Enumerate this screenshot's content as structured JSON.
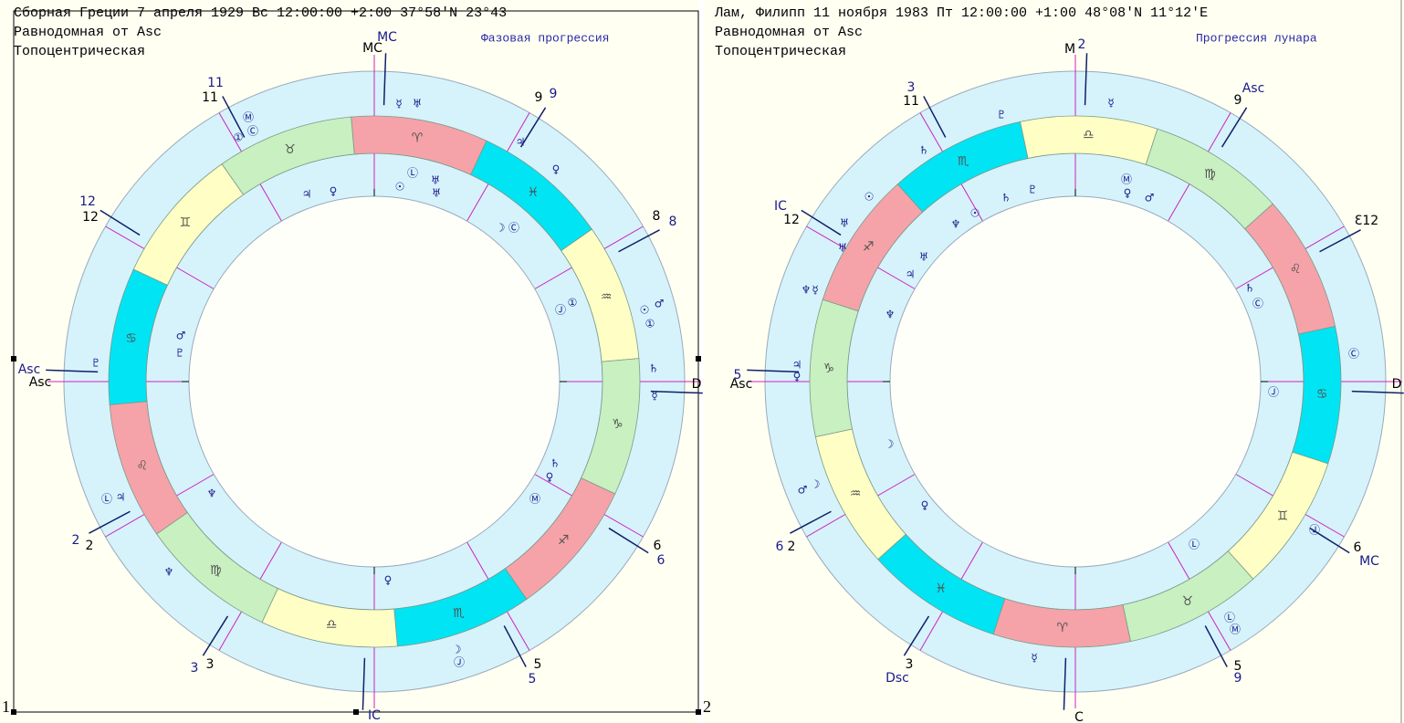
{
  "panels": [
    {
      "number": "1",
      "header": {
        "title": "Сборная Греции   7 апреля 1929  Вс  12:00:00 +2:00 37°58'N  23°43",
        "house_system": "Равнодомная от Asc",
        "type": "Топоцентрическая",
        "mode": "Фазовая прогрессия"
      },
      "axis_labels": [
        "MC",
        "MC",
        "Asc",
        "Asc",
        "IC",
        "D"
      ],
      "house_labels": [
        "11",
        "11",
        "9",
        "9",
        "12",
        "12",
        "8",
        "8",
        "2",
        "2",
        "6",
        "6",
        "3",
        "3",
        "5",
        "5"
      ],
      "signs": [
        {
          "glyph": "♈",
          "color": "#f5a3a8"
        },
        {
          "glyph": "♓",
          "color": "#00e4f4"
        },
        {
          "glyph": "♒",
          "color": "#fffec4"
        },
        {
          "glyph": "♑",
          "color": "#c8f0c0"
        },
        {
          "glyph": "♐",
          "color": "#f5a3a8"
        },
        {
          "glyph": "♏",
          "color": "#00e4f4"
        },
        {
          "glyph": "♎",
          "color": "#fffec4"
        },
        {
          "glyph": "♍",
          "color": "#c8f0c0"
        },
        {
          "glyph": "♌",
          "color": "#f5a3a8"
        },
        {
          "glyph": "♋",
          "color": "#00e4f4"
        },
        {
          "glyph": "♊",
          "color": "#fffec4"
        },
        {
          "glyph": "♉",
          "color": "#c8f0c0"
        }
      ],
      "points": [
        "☿",
        "♅",
        "Ⓜ",
        "Ⓒ",
        "①",
        "♃",
        "♀",
        "☉",
        "♂",
        "①",
        "♄",
        "☿",
        "♇",
        "Ⓛ",
        "♃",
        "♆",
        "☽",
        "Ⓙ",
        "♃",
        "♀",
        "☉",
        "Ⓛ",
        "♅",
        "♅",
        "☽",
        "Ⓒ",
        "Ⓙ",
        "①",
        "♂",
        "♇",
        "♄",
        "♀",
        "Ⓜ",
        "♆",
        "♀"
      ]
    },
    {
      "number": "2",
      "header": {
        "title": "Лам, Филипп  11 ноября 1983  Пт  12:00:00 +1:00 48°08'N  11°12'E",
        "house_system": "Равнодомная от Asc",
        "type": "Топоцентрическая",
        "mode": "Прогрессия лунара"
      },
      "axis_labels": [
        "M",
        "2",
        "Asc",
        "IC",
        "Asc",
        "5",
        "D",
        "MC",
        "Dsc",
        "C"
      ],
      "house_labels": [
        "3",
        "11",
        "9",
        "Ɛ12",
        "12",
        "6",
        "2",
        "6",
        "5",
        "9",
        "3"
      ],
      "signs": [
        {
          "glyph": "♎",
          "color": "#fffec4"
        },
        {
          "glyph": "♍",
          "color": "#c8f0c0"
        },
        {
          "glyph": "♌",
          "color": "#f5a3a8"
        },
        {
          "glyph": "♋",
          "color": "#00e4f4"
        },
        {
          "glyph": "♊",
          "color": "#fffec4"
        },
        {
          "glyph": "♉",
          "color": "#c8f0c0"
        },
        {
          "glyph": "♈",
          "color": "#f5a3a8"
        },
        {
          "glyph": "♓",
          "color": "#00e4f4"
        },
        {
          "glyph": "♒",
          "color": "#fffec4"
        },
        {
          "glyph": "♑",
          "color": "#c8f0c0"
        },
        {
          "glyph": "♐",
          "color": "#f5a3a8"
        },
        {
          "glyph": "♏",
          "color": "#00e4f4"
        }
      ],
      "points": [
        "☿",
        "♇",
        "♄",
        "☉",
        "♅",
        "♅",
        "♆",
        "☿",
        "♃",
        "♀",
        "♂",
        "☽",
        "♄",
        "Ⓒ",
        "Ⓒ",
        "Ⓙ",
        "Ⓛ",
        "Ⓜ",
        "☿",
        "Ⓜ",
        "♀",
        "♂",
        "♇",
        "♄",
        "☉",
        "♆",
        "♅",
        "♃",
        "♆",
        "☽",
        "♀",
        "Ⓙ",
        "Ⓛ"
      ]
    }
  ]
}
